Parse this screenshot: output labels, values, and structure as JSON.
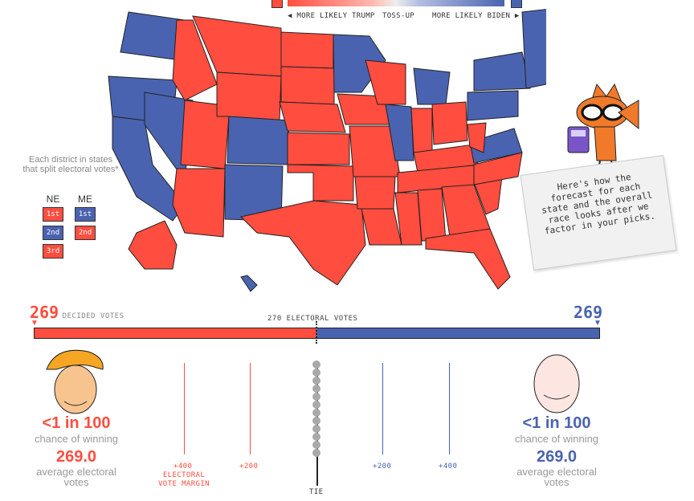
{
  "legend": {
    "left": "◀ MORE LIKELY TRUMP",
    "center": "TOSS-UP",
    "right": "MORE LIKELY BIDEN ▶"
  },
  "districts": {
    "title": "Each district in states that split electoral votes*",
    "ne": {
      "label": "NE",
      "boxes": [
        "1st",
        "2nd",
        "3rd"
      ]
    },
    "me": {
      "label": "ME",
      "boxes": [
        "1st",
        "2nd"
      ]
    }
  },
  "note": "Here's how the forecast for each state and the overall race looks after we factor in your picks.",
  "race": {
    "left_votes": "269",
    "decided_label": "DECIDED VOTES",
    "right_votes": "269",
    "threshold_label": "270 ELECTORAL VOTES"
  },
  "trump": {
    "chance": "<1 in 100",
    "chance_label": "chance of winning",
    "ev": "269.0",
    "ev_label": "average electoral votes"
  },
  "biden": {
    "chance": "<1 in 100",
    "chance_label": "chance of winning",
    "ev": "269.0",
    "ev_label": "average electoral votes"
  },
  "margin": {
    "trump_400": "+400",
    "trump_200": "+200",
    "axis_label": "ELECTORAL VOTE MARGIN",
    "biden_200": "+200",
    "biden_400": "+400",
    "tie": "TIE"
  },
  "colors": {
    "trump": "#ff4d3f",
    "biden": "#4a63b0"
  }
}
